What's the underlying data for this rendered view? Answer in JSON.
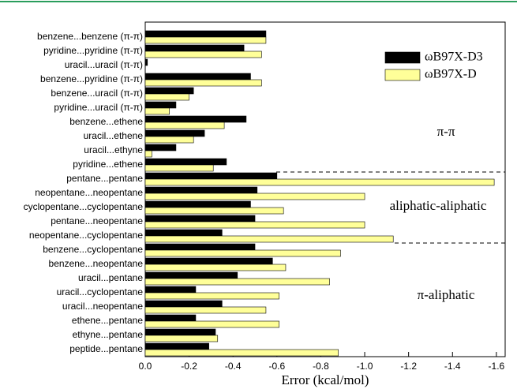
{
  "chart_data": {
    "type": "hbar",
    "categories": [
      "benzene...benzene (π-π)",
      "pyridine...pyridine (π-π)",
      "uracil...uracil (π-π)",
      "benzene...pyridine (π-π)",
      "benzene...uracil (π-π)",
      "pyridine...uracil (π-π)",
      "benzene...ethene",
      "uracil...ethene",
      "uracil...ethyne",
      "pyridine...ethene",
      "pentane...pentane",
      "neopentane...neopentane",
      "cyclopentane...cyclopentane",
      "pentane...neopentane",
      "neopentane...cyclopentane",
      "benzene...cyclopentane",
      "benzene...neopentane",
      "uracil...pentane",
      "uracil...cyclopentane",
      "uracil...neopentane",
      "ethene...pentane",
      "ethyne...pentane",
      "peptide...pentane"
    ],
    "series": [
      {
        "name": "ωB97X-D3",
        "color": "#000000",
        "values": [
          -0.55,
          -0.45,
          -0.01,
          -0.48,
          -0.22,
          -0.14,
          -0.46,
          -0.27,
          -0.14,
          -0.37,
          -0.6,
          -0.51,
          -0.48,
          -0.5,
          -0.35,
          -0.5,
          -0.58,
          -0.42,
          -0.23,
          -0.35,
          -0.23,
          -0.32,
          -0.29
        ]
      },
      {
        "name": "ωB97X-D",
        "color": "#ffff99",
        "values": [
          -0.55,
          -0.53,
          0,
          -0.53,
          -0.2,
          -0.11,
          -0.36,
          -0.22,
          -0.03,
          -0.31,
          -1.59,
          -1.0,
          -0.63,
          -1.0,
          -1.13,
          -0.89,
          -0.64,
          -0.84,
          -0.61,
          -0.55,
          -0.61,
          -0.33,
          -0.88
        ]
      }
    ],
    "xlabel": "Error (kcal/mol)",
    "xlim": [
      0,
      -1.64
    ],
    "xticks": [
      {
        "value": 0,
        "label": "0.0"
      },
      -0.2,
      -0.4,
      -0.6,
      -0.8,
      {
        "value": -1.0,
        "label": "-1.0"
      },
      -1.2,
      -1.4,
      -1.6
    ],
    "annotations": [
      "π-π",
      "aliphatic-aliphatic",
      "π-aliphatic"
    ],
    "legend": "upper right"
  }
}
